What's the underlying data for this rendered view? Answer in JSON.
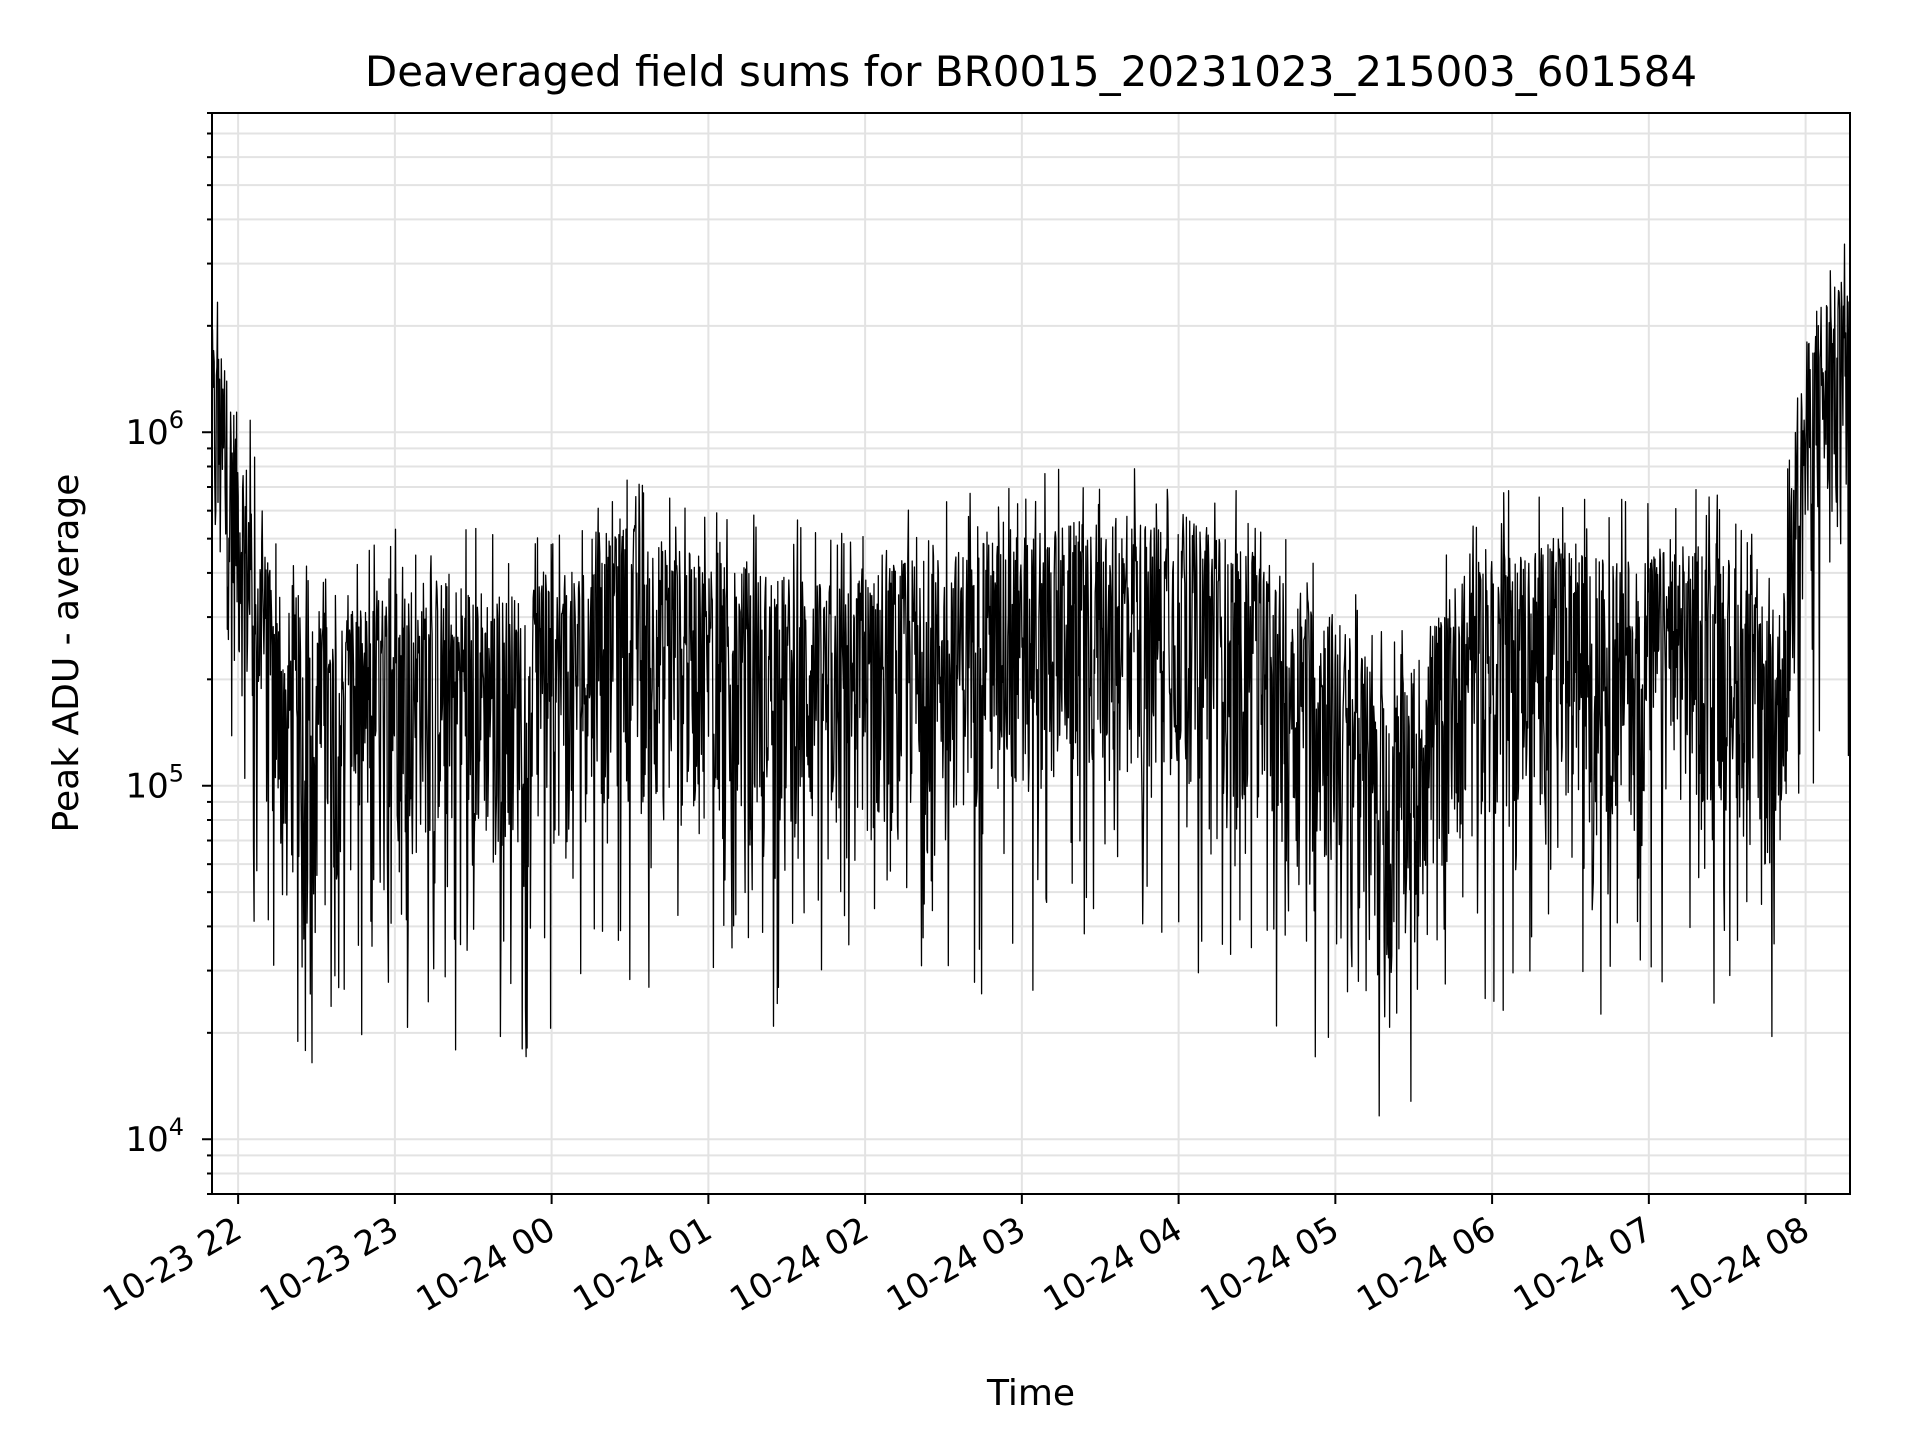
{
  "chart_data": {
    "type": "line",
    "title": "Deaveraged field sums for BR0015_20231023_215003_601584",
    "xlabel": "Time",
    "ylabel": "Peak ADU - average",
    "x_tick_labels": [
      "10-23 22",
      "10-23 23",
      "10-24 00",
      "10-24 01",
      "10-24 02",
      "10-24 03",
      "10-24 04",
      "10-24 05",
      "10-24 06",
      "10-24 07",
      "10-24 08"
    ],
    "y_tick_labels": [
      {
        "base": "10",
        "exp": "4",
        "value": 10000
      },
      {
        "base": "10",
        "exp": "5",
        "value": 100000
      },
      {
        "base": "10",
        "exp": "6",
        "value": 1000000
      }
    ],
    "xlim": [
      "2023-10-23 21:50",
      "2023-10-24 08:17"
    ],
    "ylim": [
      7000,
      8000000
    ],
    "y_scale": "log",
    "grid": true,
    "line_color": "#000000",
    "grid_color": "#e3e3e3",
    "series": [
      {
        "x": [
          "2023-10-23 21:50",
          "2023-10-23 21:55",
          "2023-10-23 22:00",
          "2023-10-23 22:10",
          "2023-10-23 22:15",
          "2023-10-23 22:30",
          "2023-10-23 22:45",
          "2023-10-23 23:00",
          "2023-10-23 23:15",
          "2023-10-23 23:30",
          "2023-10-23 23:45",
          "2023-10-24 00:00",
          "2023-10-24 00:15",
          "2023-10-24 00:30",
          "2023-10-24 00:45",
          "2023-10-24 01:00",
          "2023-10-24 01:15",
          "2023-10-24 01:30",
          "2023-10-24 01:45",
          "2023-10-24 02:00",
          "2023-10-24 02:15",
          "2023-10-24 02:30",
          "2023-10-24 02:45",
          "2023-10-24 03:00",
          "2023-10-24 03:15",
          "2023-10-24 03:30",
          "2023-10-24 03:45",
          "2023-10-24 04:00",
          "2023-10-24 04:15",
          "2023-10-24 04:30",
          "2023-10-24 04:45",
          "2023-10-24 05:00",
          "2023-10-24 05:10",
          "2023-10-24 05:20",
          "2023-10-24 05:30",
          "2023-10-24 05:45",
          "2023-10-24 06:00",
          "2023-10-24 06:15",
          "2023-10-24 06:30",
          "2023-10-24 06:45",
          "2023-10-24 07:00",
          "2023-10-24 07:15",
          "2023-10-24 07:30",
          "2023-10-24 07:40",
          "2023-10-24 07:45",
          "2023-10-24 07:50",
          "2023-10-24 07:55",
          "2023-10-24 08:00",
          "2023-10-24 08:05",
          "2023-10-24 08:10",
          "2023-10-24 08:17"
        ],
        "y": [
          900000,
          700000,
          500000,
          220000,
          150000,
          130000,
          140000,
          170000,
          180000,
          170000,
          160000,
          170000,
          200000,
          260000,
          220000,
          200000,
          190000,
          180000,
          170000,
          180000,
          200000,
          210000,
          220000,
          240000,
          250000,
          260000,
          260000,
          260000,
          240000,
          200000,
          170000,
          140000,
          110000,
          85000,
          100000,
          170000,
          210000,
          220000,
          210000,
          200000,
          210000,
          220000,
          210000,
          160000,
          140000,
          150000,
          400000,
          800000,
          1100000,
          1200000,
          1100000
        ]
      }
    ]
  }
}
